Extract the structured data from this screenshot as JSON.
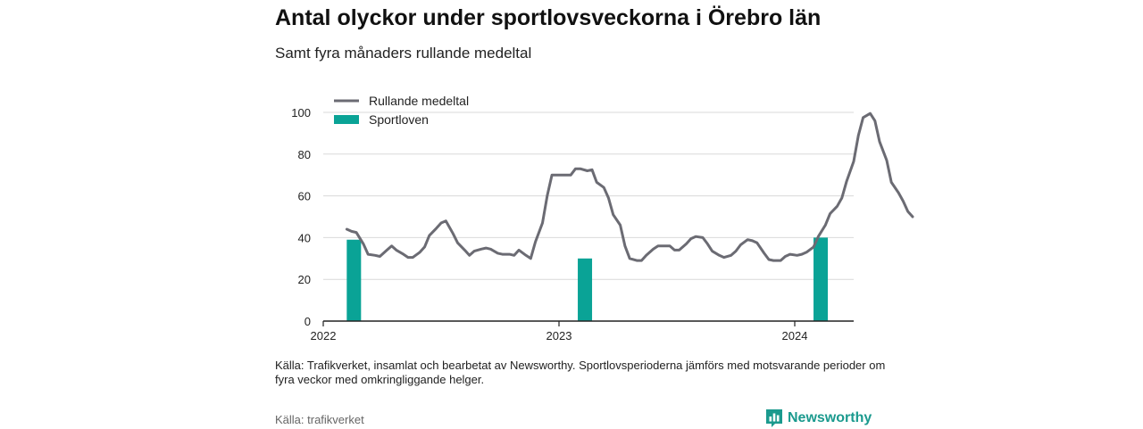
{
  "header": {
    "title": "Antal olyckor under sportlovsveckorna i Örebro län",
    "subtitle": "Samt fyra månaders rullande medeltal"
  },
  "footer": {
    "note": "Källa: Trafikverket, insamlat och bearbetat av Newsworthy. Sportlovsperioderna jämförs med motsvarande perioder om fyra veckor med omkringliggande helger.",
    "source": "Källa: trafikverket",
    "brand": "Newsworthy"
  },
  "colors": {
    "line": "#6b6b73",
    "bars": "#0aa396",
    "brand": "#1b9a8e"
  },
  "icons": {
    "brand_logo": "newsworthy-chart-bubble-icon"
  },
  "chart_data": {
    "type": "bar+line",
    "xlim": [
      2022.0,
      2024.25
    ],
    "ylim": [
      0,
      100
    ],
    "x_ticks": [
      2022,
      2023,
      2024
    ],
    "x_tick_labels": [
      "2022",
      "2023",
      "2024"
    ],
    "y_ticks": [
      0,
      20,
      40,
      60,
      80,
      100
    ],
    "y_tick_labels": [
      "0",
      "20",
      "40",
      "60",
      "80",
      "100"
    ],
    "grid": "horizontal",
    "legend_position": "top-left",
    "series": [
      {
        "name": "Rullande medeltal",
        "kind": "line",
        "points": [
          [
            2022.1,
            44
          ],
          [
            2022.12,
            43
          ],
          [
            2022.14,
            42.5
          ],
          [
            2022.17,
            37
          ],
          [
            2022.19,
            32
          ],
          [
            2022.22,
            31.5
          ],
          [
            2022.24,
            31
          ],
          [
            2022.27,
            34
          ],
          [
            2022.29,
            36
          ],
          [
            2022.31,
            34
          ],
          [
            2022.34,
            32
          ],
          [
            2022.36,
            30.5
          ],
          [
            2022.38,
            30.5
          ],
          [
            2022.41,
            33
          ],
          [
            2022.43,
            35.5
          ],
          [
            2022.45,
            41
          ],
          [
            2022.48,
            44.5
          ],
          [
            2022.5,
            47
          ],
          [
            2022.52,
            48
          ],
          [
            2022.55,
            42
          ],
          [
            2022.57,
            37.5
          ],
          [
            2022.6,
            34
          ],
          [
            2022.62,
            31.5
          ],
          [
            2022.64,
            33.5
          ],
          [
            2022.67,
            34.5
          ],
          [
            2022.69,
            35
          ],
          [
            2022.71,
            34.5
          ],
          [
            2022.74,
            32.5
          ],
          [
            2022.76,
            32
          ],
          [
            2022.79,
            32
          ],
          [
            2022.81,
            31.5
          ],
          [
            2022.83,
            34
          ],
          [
            2022.86,
            31.5
          ],
          [
            2022.88,
            30
          ],
          [
            2022.9,
            38
          ],
          [
            2022.93,
            47
          ],
          [
            2022.95,
            60
          ],
          [
            2022.97,
            70
          ],
          [
            2023.0,
            70
          ],
          [
            2023.02,
            70
          ],
          [
            2023.05,
            70
          ],
          [
            2023.07,
            73
          ],
          [
            2023.09,
            73
          ],
          [
            2023.12,
            72
          ],
          [
            2023.14,
            72.5
          ],
          [
            2023.16,
            66.5
          ],
          [
            2023.19,
            64
          ],
          [
            2023.21,
            59
          ],
          [
            2023.23,
            51
          ],
          [
            2023.26,
            46
          ],
          [
            2023.28,
            36
          ],
          [
            2023.3,
            30
          ],
          [
            2023.33,
            29
          ],
          [
            2023.35,
            29
          ],
          [
            2023.37,
            31.5
          ],
          [
            2023.4,
            34.5
          ],
          [
            2023.42,
            36
          ],
          [
            2023.44,
            36
          ],
          [
            2023.47,
            36
          ],
          [
            2023.49,
            34
          ],
          [
            2023.51,
            34
          ],
          [
            2023.54,
            37
          ],
          [
            2023.56,
            39.5
          ],
          [
            2023.58,
            40.5
          ],
          [
            2023.61,
            40
          ],
          [
            2023.63,
            37
          ],
          [
            2023.65,
            33.5
          ],
          [
            2023.68,
            31.5
          ],
          [
            2023.7,
            30.5
          ],
          [
            2023.73,
            31.5
          ],
          [
            2023.75,
            33.5
          ],
          [
            2023.77,
            36.5
          ],
          [
            2023.8,
            39
          ],
          [
            2023.82,
            38.5
          ],
          [
            2023.84,
            37.5
          ],
          [
            2023.87,
            32.5
          ],
          [
            2023.89,
            29.5
          ],
          [
            2023.91,
            29
          ],
          [
            2023.94,
            29
          ],
          [
            2023.96,
            31
          ],
          [
            2023.98,
            32
          ],
          [
            2024.01,
            31.5
          ],
          [
            2024.03,
            32
          ],
          [
            2024.05,
            33
          ],
          [
            2024.08,
            35.5
          ],
          [
            2024.1,
            40.5
          ],
          [
            2024.13,
            46
          ],
          [
            2024.15,
            51.5
          ],
          [
            2024.18,
            55
          ],
          [
            2024.2,
            59
          ],
          [
            2024.22,
            67
          ],
          [
            2024.25,
            76.5
          ],
          [
            2024.27,
            89
          ],
          [
            2024.29,
            97.5
          ],
          [
            2024.32,
            99.5
          ],
          [
            2024.34,
            96
          ],
          [
            2024.36,
            86
          ],
          [
            2024.39,
            77
          ],
          [
            2024.41,
            66.5
          ],
          [
            2024.44,
            61.5
          ],
          [
            2024.46,
            57.5
          ],
          [
            2024.48,
            52.5
          ],
          [
            2024.5,
            50
          ]
        ]
      },
      {
        "name": "Sportloven",
        "kind": "bar",
        "points": [
          [
            2022.13,
            39
          ],
          [
            2023.11,
            30
          ],
          [
            2024.11,
            40
          ]
        ]
      }
    ]
  }
}
